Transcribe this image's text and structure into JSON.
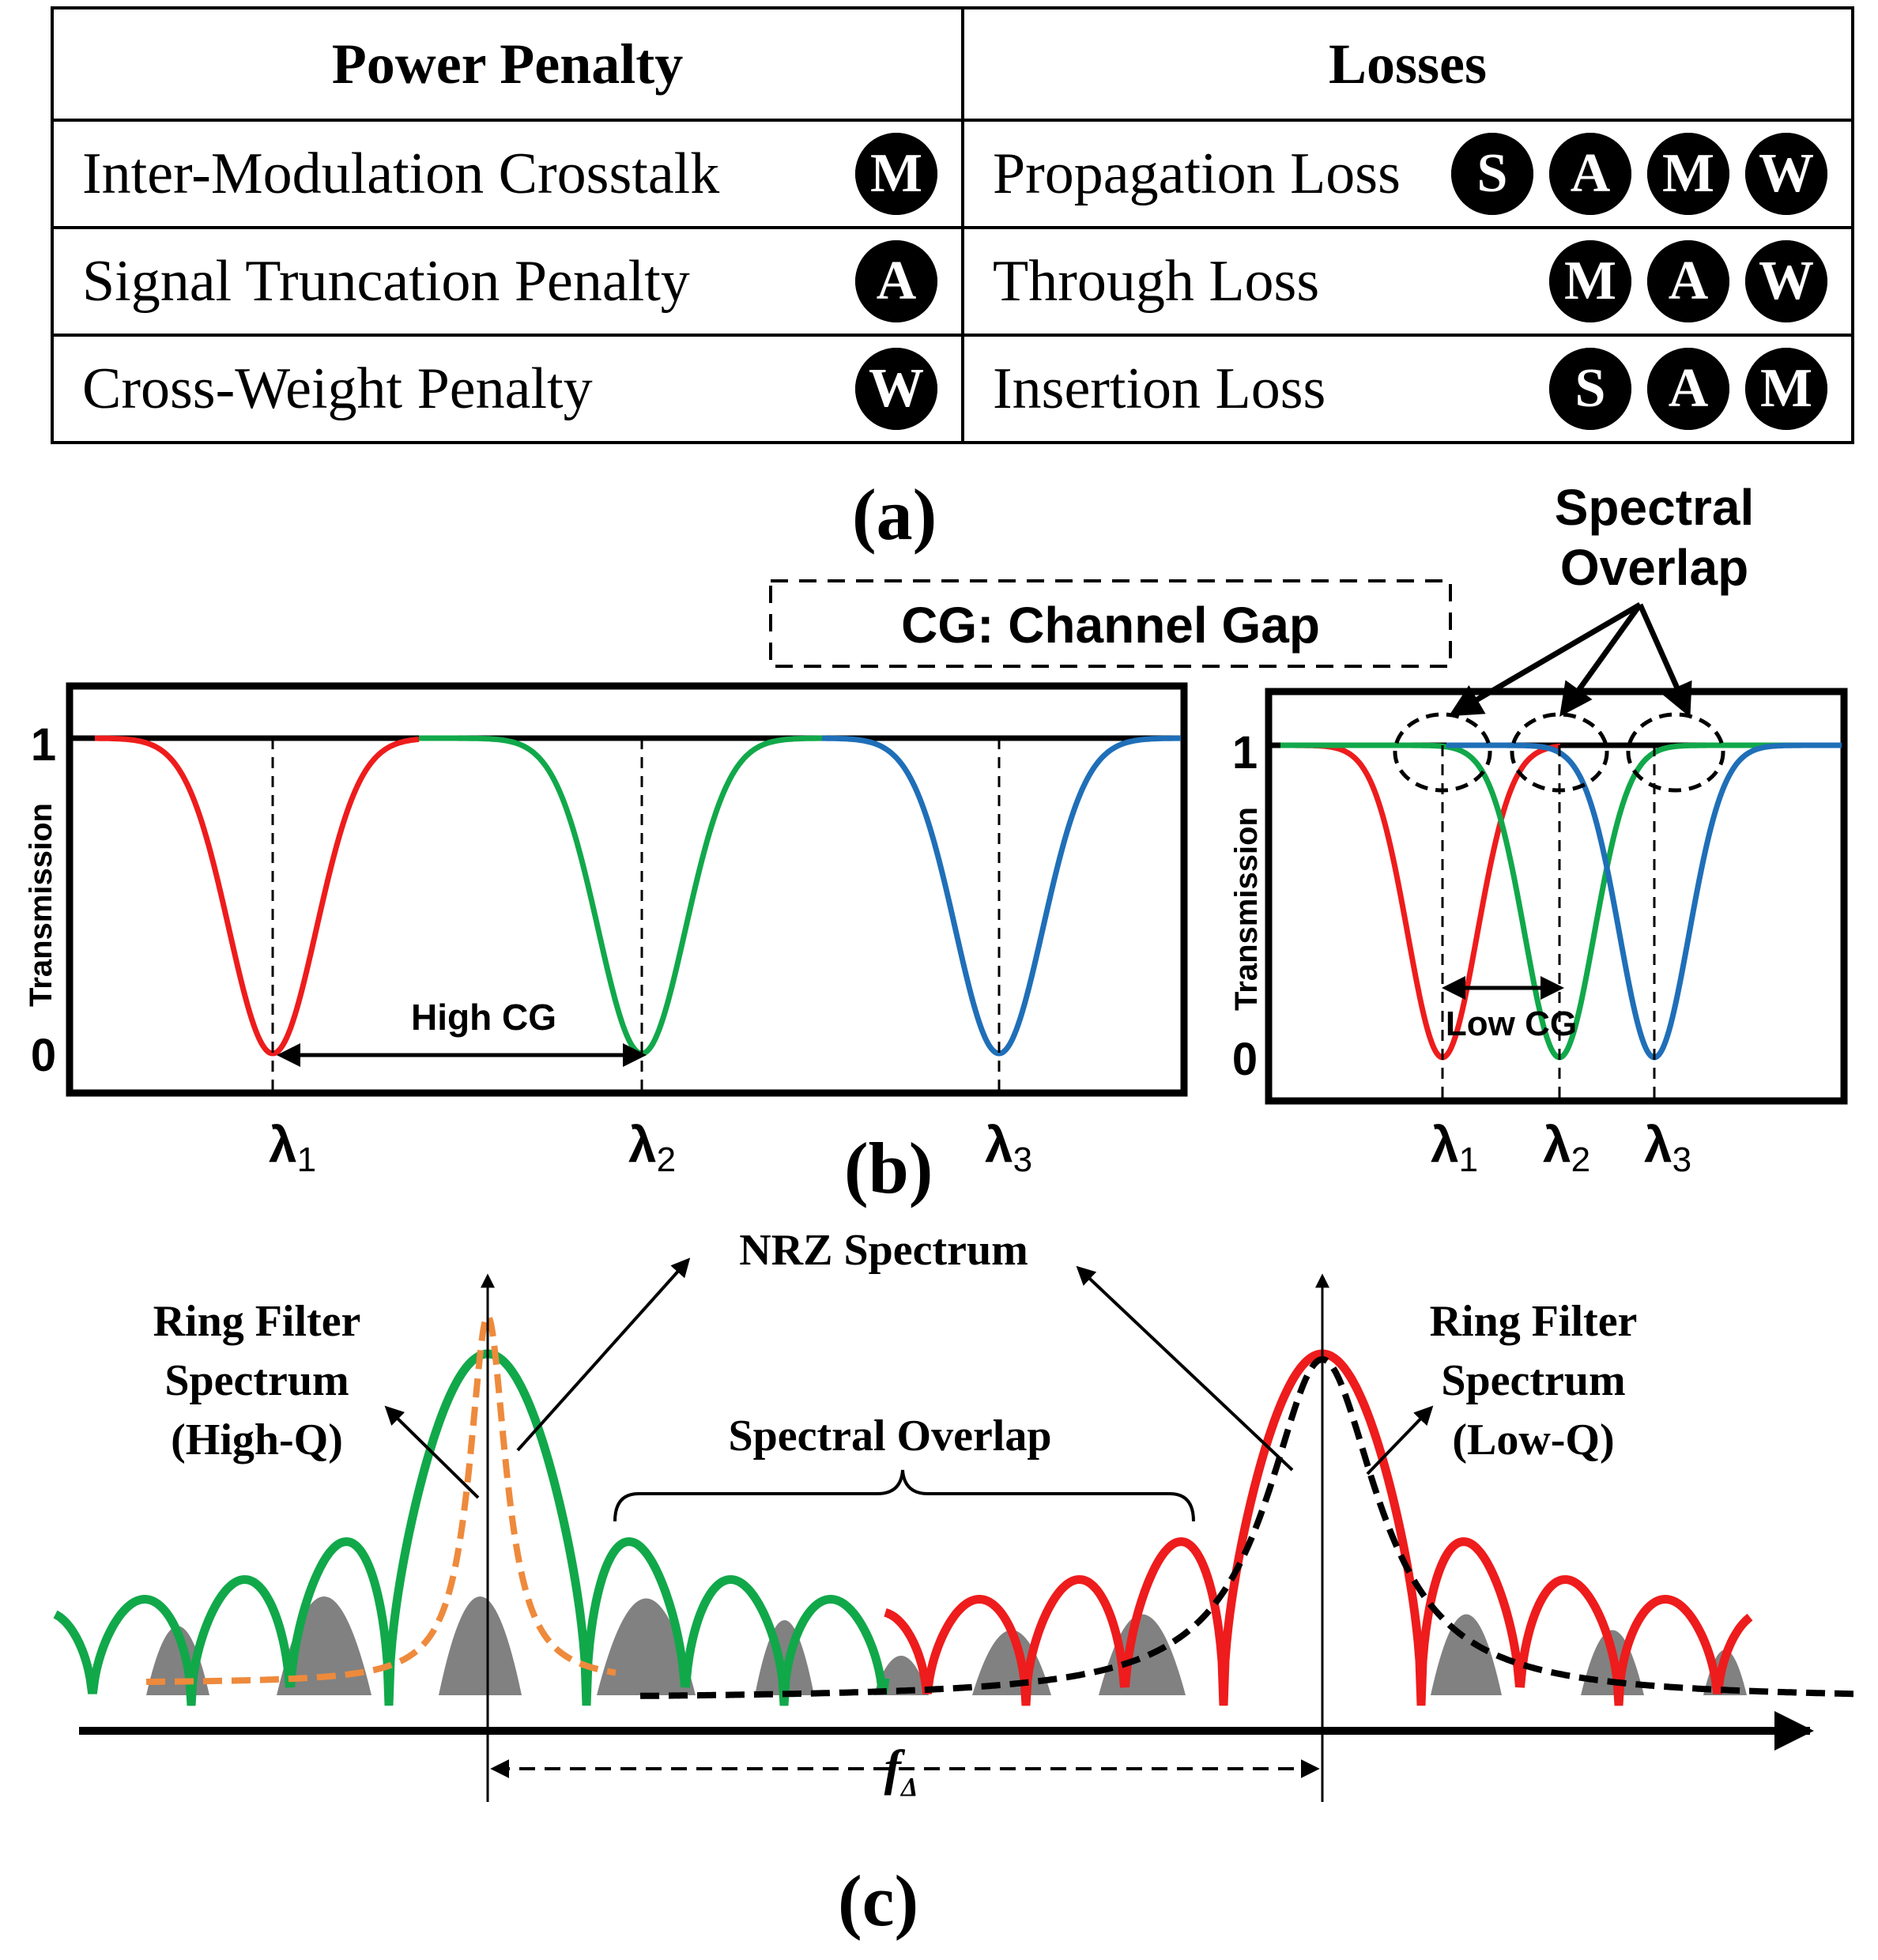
{
  "table": {
    "headers": [
      "Power Penalty",
      "Losses"
    ],
    "rows": [
      {
        "penalty": "Inter-Modulation Crosstalk",
        "penalty_badges": [
          "M"
        ],
        "loss": "Propagation Loss",
        "loss_badges": [
          "S",
          "A",
          "M",
          "W"
        ]
      },
      {
        "penalty": "Signal Truncation Penalty",
        "penalty_badges": [
          "A"
        ],
        "loss": "Through Loss",
        "loss_badges": [
          "M",
          "A",
          "W"
        ]
      },
      {
        "penalty": "Cross-Weight Penalty",
        "penalty_badges": [
          "W"
        ],
        "loss": "Insertion Loss",
        "loss_badges": [
          "S",
          "A",
          "M"
        ]
      }
    ]
  },
  "captions": {
    "a": "(a)",
    "b": "(b)",
    "c": "(c)"
  },
  "panel_b": {
    "legend_box": "CG: Channel Gap",
    "spectral_overlap": [
      "Spectral",
      "Overlap"
    ],
    "left": {
      "ylabel": "Transmission",
      "y_ticks": [
        "1",
        "0"
      ],
      "gap_label": "High CG",
      "wavelengths": [
        {
          "sym": "λ",
          "sub": "1"
        },
        {
          "sym": "λ",
          "sub": "2"
        },
        {
          "sym": "λ",
          "sub": "3"
        }
      ]
    },
    "right": {
      "ylabel": "Transmission",
      "y_ticks": [
        "1",
        "0"
      ],
      "gap_label": "Low CG",
      "wavelengths": [
        {
          "sym": "λ",
          "sub": "1"
        },
        {
          "sym": "λ",
          "sub": "2"
        },
        {
          "sym": "λ",
          "sub": "3"
        }
      ]
    },
    "colors": {
      "ch1": "#ee1c1c",
      "ch2": "#11a84a",
      "ch3": "#1f6fb8"
    }
  },
  "panel_c": {
    "nrz_label": "NRZ Spectrum",
    "ring_high": [
      "Ring Filter",
      "Spectrum",
      "(High-Q)"
    ],
    "ring_low": [
      "Ring Filter",
      "Spectrum",
      "(Low-Q)"
    ],
    "spectral_overlap": "Spectral Overlap",
    "freq_label": "f",
    "freq_sub": "Δ",
    "colors": {
      "green": "#11a84a",
      "red": "#ee1c1c",
      "orange": "#ee8a3c",
      "fill": "#7a7a7a"
    }
  }
}
